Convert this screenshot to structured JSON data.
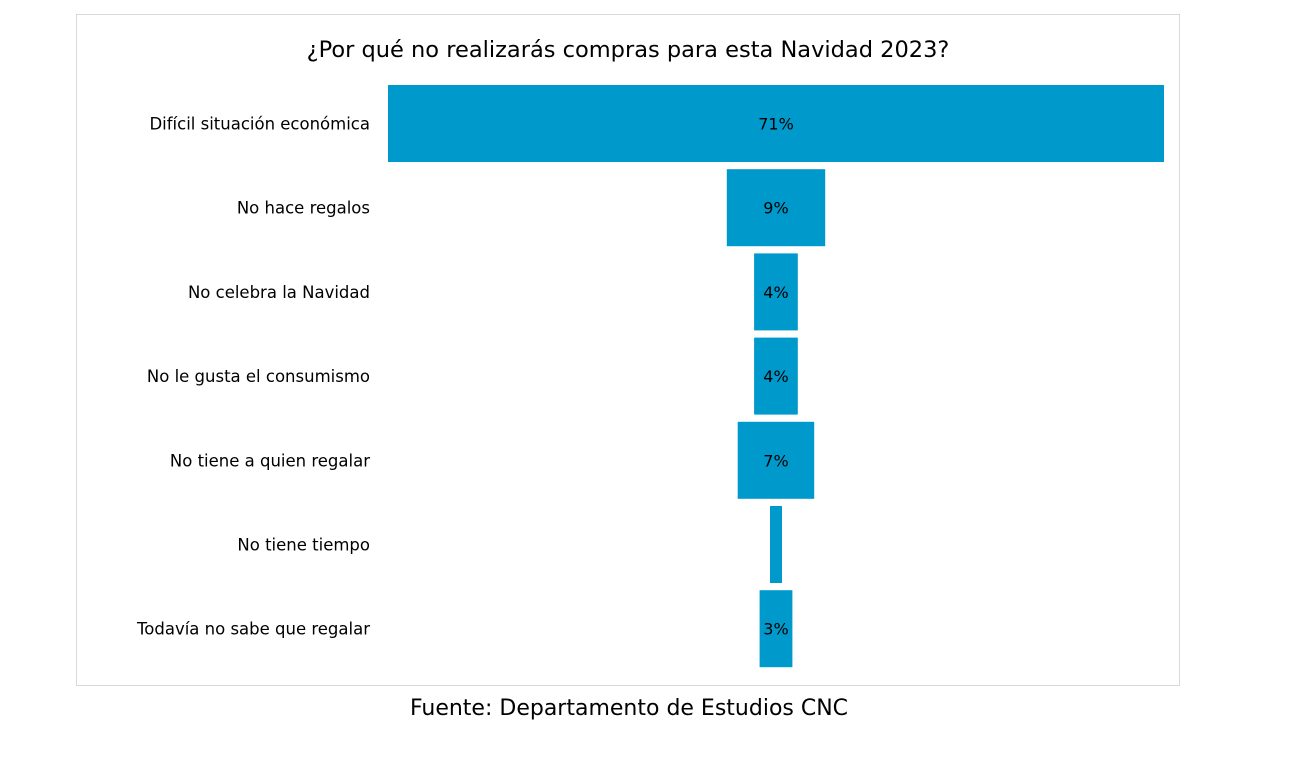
{
  "chart_data": {
    "type": "bar",
    "subtype": "funnel",
    "title": "¿Por qué no realizarás compras para esta Navidad 2023?",
    "categories": [
      "Difícil situación económica",
      "No hace regalos",
      "No celebra la Navidad",
      "No le gusta el consumismo",
      "No tiene a quien regalar",
      "No tiene tiempo",
      "Todavía no sabe que regalar"
    ],
    "values": [
      71,
      9,
      4,
      4,
      7,
      1,
      3
    ],
    "data_labels": [
      "71%",
      "9%",
      "4%",
      "4%",
      "7%",
      "",
      "3%"
    ],
    "unit": "%",
    "bar_color": "#0099CC",
    "grid": false,
    "legend": "none"
  },
  "footer": {
    "source": "Fuente: Departamento de Estudios CNC"
  }
}
